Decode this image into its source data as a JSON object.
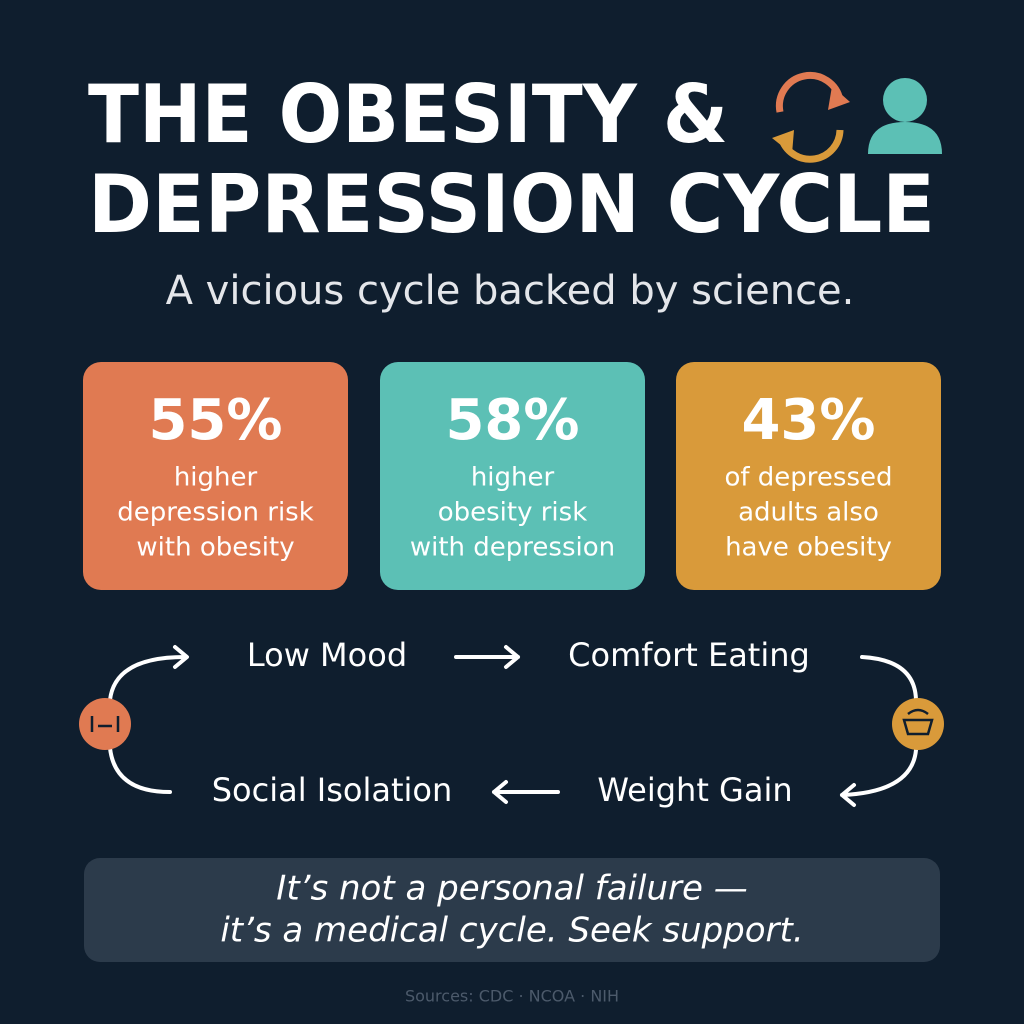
{
  "header": {
    "title": [
      "THE OBESITY &",
      "DEPRESSION CYCLE"
    ],
    "subtitle": "A vicious cycle backed by science."
  },
  "stats": [
    {
      "value": "55%",
      "lines": [
        "higher",
        "depression risk",
        "with obesity"
      ]
    },
    {
      "value": "58%",
      "lines": [
        "higher",
        "obesity risk",
        "with depression"
      ]
    },
    {
      "value": "43%",
      "lines": [
        "of depressed",
        "adults also",
        "have obesity"
      ]
    }
  ],
  "cycle": [
    "Low Mood",
    "Comfort Eating",
    "Weight Gain",
    "Social Isolation"
  ],
  "message": [
    "It’s not a personal failure —",
    "it’s a medical cycle. Seek support."
  ],
  "sources": "Sources: CDC · NCOA · NIH"
}
